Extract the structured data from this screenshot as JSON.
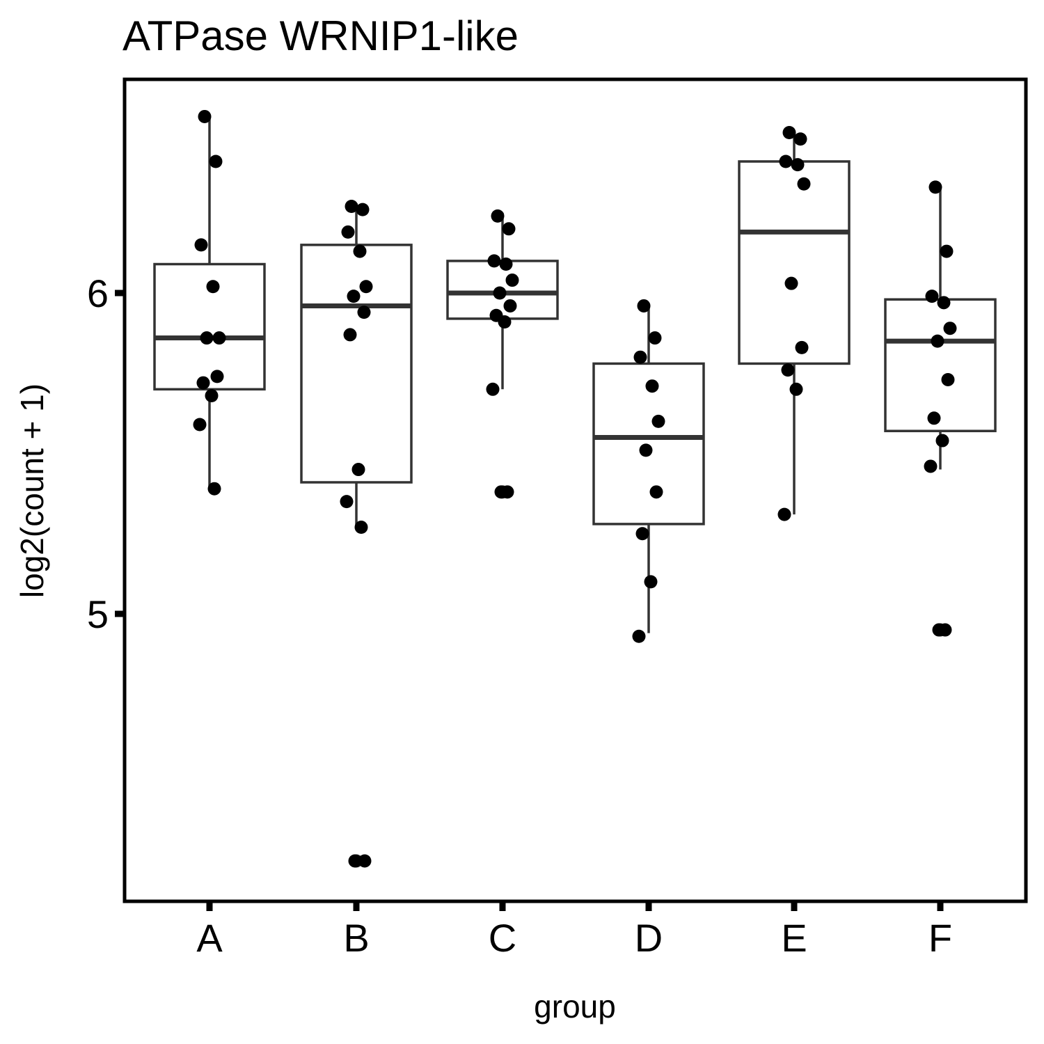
{
  "chart_data": {
    "type": "boxplot",
    "title": "ATPase WRNIP1-like",
    "xlabel": "group",
    "ylabel": "log2(count + 1)",
    "ylim": [
      4.1,
      6.66
    ],
    "yticks": [
      5,
      6
    ],
    "grid": false,
    "legend": "none",
    "categories": [
      "A",
      "B",
      "C",
      "D",
      "E",
      "F"
    ],
    "boxes": [
      {
        "group": "A",
        "whisker_low": 5.39,
        "q1": 5.7,
        "median": 5.86,
        "q3": 6.09,
        "whisker_high": 6.55
      },
      {
        "group": "B",
        "whisker_low": 5.27,
        "q1": 5.41,
        "median": 5.96,
        "q3": 6.15,
        "whisker_high": 6.28
      },
      {
        "group": "C",
        "whisker_low": 5.7,
        "q1": 5.92,
        "median": 6.0,
        "q3": 6.1,
        "whisker_high": 6.25
      },
      {
        "group": "D",
        "whisker_low": 4.94,
        "q1": 5.28,
        "median": 5.55,
        "q3": 5.78,
        "whisker_high": 5.96
      },
      {
        "group": "E",
        "whisker_low": 5.31,
        "q1": 5.78,
        "median": 6.19,
        "q3": 6.41,
        "whisker_high": 6.5
      },
      {
        "group": "F",
        "whisker_low": 5.45,
        "q1": 5.57,
        "median": 5.85,
        "q3": 5.98,
        "whisker_high": 6.33
      }
    ],
    "outliers": [
      {
        "group": "B",
        "y": 4.23
      },
      {
        "group": "C",
        "y": 5.38
      },
      {
        "group": "F",
        "y": 4.95
      }
    ],
    "points": [
      {
        "group": "A",
        "values": [
          6.55,
          6.41,
          6.15,
          6.02,
          5.86,
          5.86,
          5.74,
          5.72,
          5.68,
          5.59,
          5.39
        ]
      },
      {
        "group": "B",
        "values": [
          6.27,
          6.26,
          6.19,
          6.13,
          6.02,
          5.99,
          5.94,
          5.87,
          5.45,
          5.35,
          5.27,
          4.23,
          4.23
        ]
      },
      {
        "group": "C",
        "values": [
          6.24,
          6.2,
          6.1,
          6.09,
          6.04,
          6.0,
          5.96,
          5.93,
          5.91,
          5.7,
          5.38,
          5.38
        ]
      },
      {
        "group": "D",
        "values": [
          5.96,
          5.86,
          5.8,
          5.71,
          5.6,
          5.51,
          5.38,
          5.25,
          5.1,
          4.93
        ]
      },
      {
        "group": "E",
        "values": [
          6.5,
          6.48,
          6.41,
          6.4,
          6.34,
          6.03,
          5.83,
          5.76,
          5.7,
          5.31
        ]
      },
      {
        "group": "F",
        "values": [
          6.33,
          6.13,
          5.99,
          5.97,
          5.89,
          5.85,
          5.73,
          5.61,
          5.54,
          5.46,
          4.95,
          4.95
        ]
      }
    ]
  }
}
